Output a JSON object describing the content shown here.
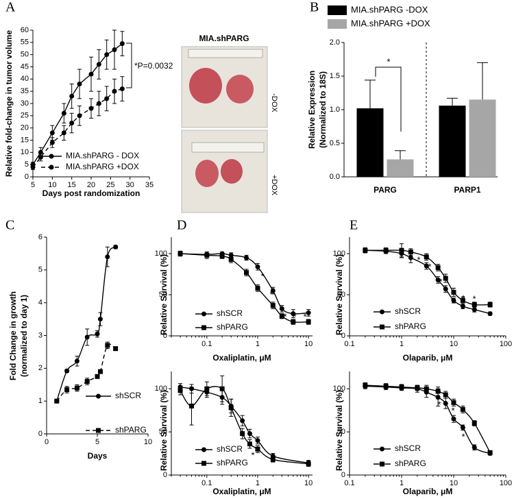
{
  "chart_data": [
    {
      "type": "line",
      "panel": "A",
      "xlabel": "Days post randomization",
      "ylabel": "Relative fold-change in tumor volume",
      "x": [
        5,
        7,
        10,
        13,
        15,
        17,
        20,
        22,
        24,
        26,
        28
      ],
      "series": [
        {
          "name": "MIA.shPARG - DOX",
          "color": "#000000",
          "line_style": "solid",
          "marker": "circle",
          "values": [
            5,
            10,
            18,
            26,
            33,
            38,
            42,
            46,
            50,
            52,
            54.5
          ],
          "errors": [
            1,
            2,
            3,
            4,
            5,
            6,
            7,
            6,
            6,
            8,
            5
          ]
        },
        {
          "name": "MIA.shPARG +DOX",
          "color": "#000000",
          "line_style": "dashed",
          "marker": "circle",
          "values": [
            4,
            8,
            14,
            18,
            22,
            25,
            28,
            30,
            32,
            35,
            36
          ],
          "errors": [
            1,
            1.5,
            2,
            3,
            4,
            4,
            4,
            5,
            5,
            5,
            5
          ]
        }
      ],
      "xlim": [
        5,
        35
      ],
      "xticks": [
        5,
        10,
        15,
        20,
        25,
        30,
        35
      ],
      "ylim": [
        0,
        60
      ],
      "yticks": [
        0,
        5,
        10,
        15,
        20,
        25,
        30,
        35,
        40,
        45,
        50,
        55,
        60
      ],
      "annotation": "*P=0.0032",
      "image_title": "MIA.shPARG",
      "image_labels": [
        "-DOX",
        "+DOX"
      ]
    },
    {
      "type": "bar",
      "panel": "B",
      "ylabel": "Relative Expression",
      "ylabel_note": "(Normalized to 18S)",
      "categories": [
        "PARG",
        "PARP1"
      ],
      "series": [
        {
          "name": "MIA.shPARG -DOX",
          "color": "#000000",
          "values": [
            1.02,
            1.06
          ],
          "errors": [
            0.42,
            0.11
          ]
        },
        {
          "name": "MIA.shPARG +DOX",
          "color": "#a6a6a6",
          "values": [
            0.26,
            1.15
          ],
          "errors": [
            0.13,
            0.55
          ]
        }
      ],
      "ylim": [
        0,
        2
      ],
      "yticks": [
        {
          "value": 0,
          "label": "0.0"
        },
        {
          "value": 0.5,
          "label": "0.5"
        },
        {
          "value": 1,
          "label": "1.0"
        },
        {
          "value": 1.5,
          "label": "1.5"
        },
        {
          "value": 2,
          "label": "2.0"
        }
      ],
      "annotations": [
        "*"
      ]
    },
    {
      "type": "line",
      "panel": "C",
      "xlabel": "Days",
      "ylabel": "Fold Change in growth",
      "ylabel_note": "(normalized to day 1)",
      "x": [
        1,
        2,
        3,
        4,
        5,
        5.3,
        6,
        6.8
      ],
      "series": [
        {
          "name": "shSCR",
          "color": "#000000",
          "line_style": "solid",
          "marker": "circle",
          "values": [
            1,
            1.92,
            2.22,
            2.95,
            3.05,
            3.5,
            5.4,
            5.7
          ],
          "errors": [
            0,
            0.05,
            0.15,
            0.25,
            0.1,
            0.2,
            0.3,
            0.05
          ]
        },
        {
          "name": "shPARG",
          "color": "#000000",
          "line_style": "dashed",
          "marker": "square",
          "values": [
            1,
            1.35,
            1.4,
            1.6,
            1.75,
            1.9,
            2.7,
            2.6
          ],
          "errors": [
            0,
            0.1,
            0.1,
            0.1,
            0.05,
            0.05,
            0.1,
            0.05
          ]
        }
      ],
      "xlim": [
        0,
        10
      ],
      "xticks": [
        0,
        5,
        10
      ],
      "ylim": [
        0,
        6
      ],
      "yticks": [
        0,
        1,
        2,
        3,
        4,
        5,
        6
      ]
    },
    {
      "type": "scatter",
      "panel": "D",
      "xlabel": "Oxaliplatin, μM",
      "ylabel": "Relative Survival (%)",
      "xscale": "log",
      "x": [
        0.03,
        0.1,
        0.2,
        0.3,
        0.6,
        1,
        2,
        3,
        5,
        10
      ],
      "series": [
        {
          "name": "shSCR",
          "color": "#000000",
          "marker": "circle",
          "values": [
            100,
            99,
            100,
            98,
            95,
            84,
            55,
            33,
            27,
            28
          ],
          "errors": [
            3,
            3,
            2,
            3,
            3,
            4,
            4,
            4,
            5,
            4
          ]
        },
        {
          "name": "shPARG",
          "color": "#000000",
          "marker": "square",
          "values": [
            100,
            98,
            97,
            93,
            77,
            58,
            37,
            24,
            17,
            17
          ],
          "errors": [
            3,
            4,
            3,
            4,
            4,
            4,
            4,
            3,
            3,
            3
          ]
        }
      ],
      "xlim": [
        0.02,
        12
      ],
      "xticks": [
        0.1,
        1,
        10
      ],
      "ylim": [
        0,
        120
      ],
      "yticks": [
        0,
        50,
        100
      ],
      "annotations": [
        "*",
        "*",
        "*",
        "*",
        "*"
      ]
    },
    {
      "type": "scatter",
      "xlabel": "Oxaliplatin, μM",
      "ylabel": "Relative Survival (%)",
      "xscale": "log",
      "x": [
        0.03,
        0.05,
        0.1,
        0.2,
        0.3,
        0.5,
        0.7,
        1,
        2,
        10
      ],
      "series": [
        {
          "name": "shSCR",
          "color": "#000000",
          "marker": "circle",
          "values": [
            102,
            100,
            96,
            90,
            80,
            63,
            48,
            40,
            22,
            14
          ],
          "errors": [
            4,
            5,
            6,
            8,
            8,
            6,
            5,
            4,
            3,
            3
          ]
        },
        {
          "name": "shPARG",
          "color": "#000000",
          "marker": "square",
          "values": [
            98,
            80,
            100,
            100,
            78,
            48,
            36,
            30,
            18,
            13
          ],
          "errors": [
            5,
            22,
            8,
            15,
            10,
            6,
            5,
            4,
            3,
            3
          ]
        }
      ],
      "xlim": [
        0.02,
        12
      ],
      "xticks": [
        0.1,
        1,
        10
      ],
      "ylim": [
        0,
        120
      ],
      "yticks": [
        0,
        50,
        100
      ],
      "annotations": [
        "*"
      ]
    },
    {
      "type": "scatter",
      "panel": "E",
      "xlabel": "Olaparib, μM",
      "ylabel": "Relative Survival (%)",
      "xscale": "log",
      "x": [
        0.2,
        0.5,
        1,
        1.5,
        3,
        5,
        7,
        10,
        15,
        25,
        50
      ],
      "series": [
        {
          "name": "shSCR",
          "color": "#000000",
          "marker": "circle",
          "values": [
            104,
            103,
            100,
            95,
            85,
            68,
            57,
            43,
            36,
            32,
            27
          ],
          "errors": [
            3,
            3,
            5,
            6,
            4,
            4,
            4,
            3,
            3,
            3,
            2
          ]
        },
        {
          "name": "shPARG",
          "color": "#000000",
          "marker": "square",
          "values": [
            104,
            104,
            104,
            102,
            96,
            83,
            70,
            53,
            43,
            38,
            38
          ],
          "errors": [
            3,
            3,
            8,
            4,
            4,
            4,
            5,
            5,
            4,
            3,
            3
          ]
        }
      ],
      "xlim": [
        0.1,
        100
      ],
      "xticks": [
        0.1,
        1,
        10,
        100
      ],
      "ylim": [
        0,
        120
      ],
      "yticks": [
        0,
        50,
        100
      ],
      "annotations": [
        "*",
        "*",
        "*",
        "*",
        "*",
        "*"
      ]
    },
    {
      "type": "scatter",
      "xlabel": "Olaparib, μM",
      "ylabel": "Relative Survival (%)",
      "xscale": "log",
      "x": [
        0.2,
        0.5,
        1,
        2,
        3,
        5,
        7,
        10,
        15,
        25,
        50
      ],
      "series": [
        {
          "name": "shSCR",
          "color": "#000000",
          "marker": "circle",
          "values": [
            103,
            102,
            101,
            100,
            96,
            90,
            83,
            65,
            55,
            32,
            25
          ],
          "errors": [
            3,
            3,
            3,
            4,
            6,
            10,
            6,
            4,
            3,
            3,
            2
          ]
        },
        {
          "name": "shPARG",
          "color": "#000000",
          "marker": "square",
          "values": [
            104,
            103,
            102,
            101,
            100,
            97,
            93,
            84,
            76,
            60,
            26
          ],
          "errors": [
            3,
            3,
            3,
            3,
            4,
            5,
            4,
            4,
            4,
            3,
            2
          ]
        }
      ],
      "xlim": [
        0.1,
        100
      ],
      "xticks": [
        0.1,
        1,
        10,
        100
      ],
      "ylim": [
        0,
        120
      ],
      "yticks": [
        0,
        50,
        100
      ],
      "annotations": [
        "*",
        "*",
        "*"
      ]
    }
  ]
}
